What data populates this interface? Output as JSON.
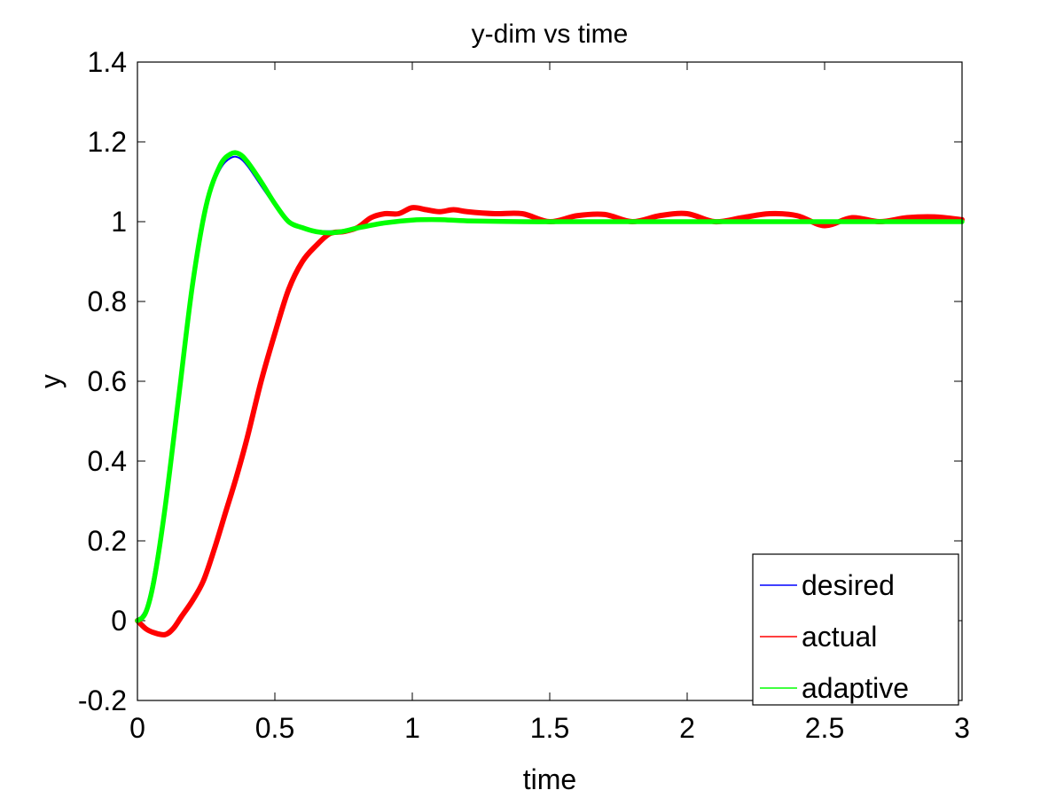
{
  "chart_data": {
    "type": "line",
    "title": "y-dim vs time",
    "xlabel": "time",
    "ylabel": "y",
    "xlim": [
      0,
      3
    ],
    "ylim": [
      -0.2,
      1.4
    ],
    "xticks": [
      0,
      0.5,
      1,
      1.5,
      2,
      2.5,
      3
    ],
    "xtick_labels": [
      "0",
      "0.5",
      "1",
      "1.5",
      "2",
      "2.5",
      "3"
    ],
    "yticks": [
      -0.2,
      0,
      0.2,
      0.4,
      0.6,
      0.8,
      1,
      1.2,
      1.4
    ],
    "ytick_labels": [
      "-0.2",
      "0",
      "0.2",
      "0.4",
      "0.6",
      "0.8",
      "1",
      "1.2",
      "1.4"
    ],
    "grid": false,
    "legend_position": "bottom-right",
    "series": [
      {
        "name": "desired",
        "color": "#0000ff",
        "x": [
          0,
          0.03,
          0.06,
          0.1,
          0.15,
          0.2,
          0.25,
          0.3,
          0.34,
          0.37,
          0.4,
          0.45,
          0.5,
          0.55,
          0.6,
          0.65,
          0.7,
          0.75,
          0.8,
          0.9,
          1.0,
          1.1,
          1.2,
          1.4,
          1.6,
          2.0,
          2.5,
          3.0
        ],
        "y": [
          0,
          0.03,
          0.12,
          0.3,
          0.58,
          0.85,
          1.04,
          1.13,
          1.16,
          1.16,
          1.14,
          1.09,
          1.04,
          1.0,
          0.985,
          0.978,
          0.976,
          0.978,
          0.985,
          0.997,
          1.003,
          1.004,
          1.002,
          1.0,
          1.0,
          1.0,
          1.0,
          1.0
        ]
      },
      {
        "name": "actual",
        "color": "#ff0000",
        "x": [
          0,
          0.03,
          0.06,
          0.1,
          0.13,
          0.16,
          0.2,
          0.24,
          0.28,
          0.32,
          0.36,
          0.4,
          0.45,
          0.5,
          0.55,
          0.6,
          0.65,
          0.7,
          0.75,
          0.8,
          0.85,
          0.9,
          0.95,
          1.0,
          1.05,
          1.1,
          1.15,
          1.2,
          1.3,
          1.4,
          1.5,
          1.6,
          1.7,
          1.8,
          1.9,
          2.0,
          2.1,
          2.2,
          2.3,
          2.4,
          2.5,
          2.6,
          2.7,
          2.8,
          2.9,
          3.0
        ],
        "y": [
          0,
          -0.02,
          -0.03,
          -0.035,
          -0.02,
          0.01,
          0.05,
          0.1,
          0.18,
          0.27,
          0.36,
          0.46,
          0.6,
          0.72,
          0.83,
          0.9,
          0.94,
          0.97,
          0.975,
          0.985,
          1.01,
          1.02,
          1.02,
          1.035,
          1.03,
          1.025,
          1.03,
          1.025,
          1.02,
          1.02,
          1.0,
          1.015,
          1.018,
          1.0,
          1.015,
          1.02,
          1.0,
          1.01,
          1.02,
          1.015,
          0.99,
          1.01,
          1.0,
          1.01,
          1.012,
          1.005
        ]
      },
      {
        "name": "adaptive",
        "color": "#00ff00",
        "x": [
          0,
          0.03,
          0.06,
          0.1,
          0.15,
          0.2,
          0.25,
          0.3,
          0.34,
          0.37,
          0.4,
          0.45,
          0.5,
          0.55,
          0.6,
          0.65,
          0.7,
          0.75,
          0.8,
          0.9,
          1.0,
          1.1,
          1.2,
          1.4,
          1.6,
          2.0,
          2.5,
          3.0
        ],
        "y": [
          0,
          0.02,
          0.1,
          0.28,
          0.56,
          0.84,
          1.04,
          1.14,
          1.17,
          1.17,
          1.15,
          1.1,
          1.045,
          1.0,
          0.985,
          0.975,
          0.972,
          0.976,
          0.984,
          0.997,
          1.004,
          1.005,
          1.002,
          1.0,
          1.0,
          1.0,
          1.0,
          1.0
        ]
      }
    ]
  }
}
